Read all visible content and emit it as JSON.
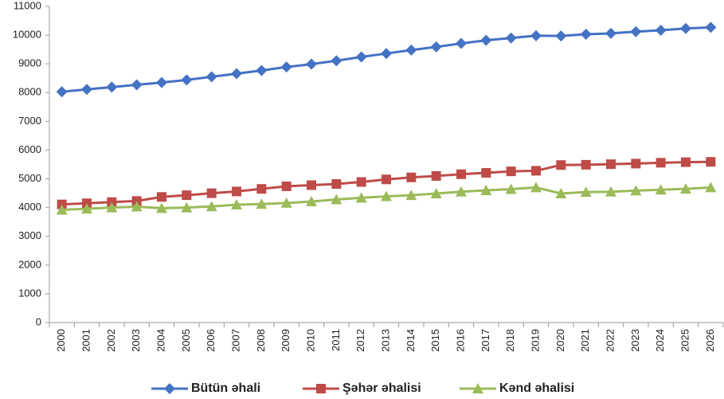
{
  "chart_data": {
    "type": "line",
    "categories": [
      "2000",
      "2001",
      "2002",
      "2003",
      "2004",
      "2005",
      "2006",
      "2007",
      "2008",
      "2009",
      "2010",
      "2011",
      "2012",
      "2013",
      "2014",
      "2015",
      "2016",
      "2017",
      "2018",
      "2019",
      "2020",
      "2021",
      "2022",
      "2023",
      "2024",
      "2025",
      "2026"
    ],
    "series": [
      {
        "name": "Bütün əhali",
        "color": "#4472c4",
        "marker": "diamond",
        "values": [
          8030,
          8110,
          8190,
          8270,
          8350,
          8440,
          8550,
          8660,
          8770,
          8890,
          8990,
          9110,
          9240,
          9360,
          9480,
          9590,
          9710,
          9820,
          9900,
          9980,
          9970,
          10030,
          10060,
          10120,
          10170,
          10230,
          10270
        ]
      },
      {
        "name": "Şəhər əhalisi",
        "color": "#be4b48",
        "marker": "square",
        "values": [
          4110,
          4150,
          4190,
          4230,
          4370,
          4430,
          4500,
          4560,
          4650,
          4740,
          4780,
          4820,
          4890,
          4980,
          5050,
          5100,
          5160,
          5210,
          5260,
          5280,
          5480,
          5490,
          5510,
          5530,
          5560,
          5580,
          5590
        ]
      },
      {
        "name": "Kənd əhalisi",
        "color": "#9bbb59",
        "marker": "triangle",
        "values": [
          3920,
          3960,
          4000,
          4030,
          3980,
          4000,
          4040,
          4100,
          4120,
          4160,
          4210,
          4280,
          4340,
          4390,
          4430,
          4490,
          4550,
          4600,
          4640,
          4700,
          4490,
          4540,
          4550,
          4590,
          4620,
          4650,
          4700
        ]
      }
    ],
    "ylim": [
      0,
      11000
    ],
    "yticks": [
      0,
      1000,
      2000,
      3000,
      4000,
      5000,
      6000,
      7000,
      8000,
      9000,
      10000,
      11000
    ],
    "grid": false
  }
}
